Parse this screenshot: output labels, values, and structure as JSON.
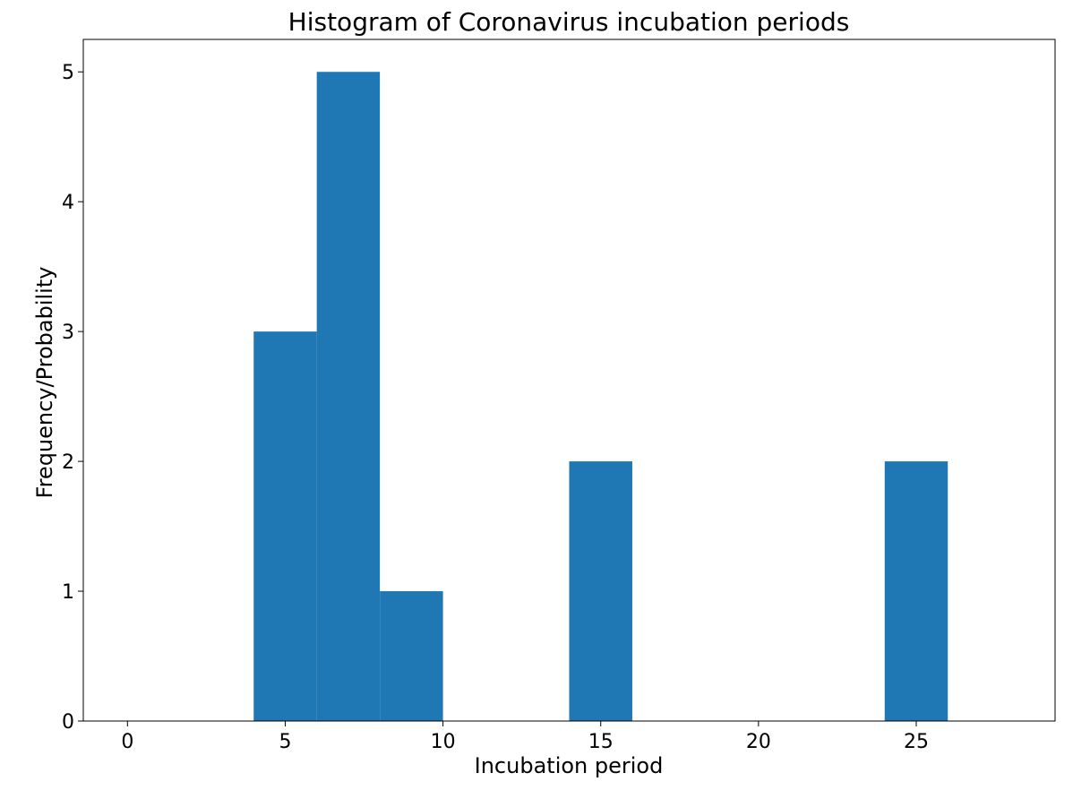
{
  "chart_data": {
    "type": "bar",
    "title": "Histogram of Coronavirus incubation periods",
    "xlabel": "Incubation period",
    "ylabel": "Frequency/Probability",
    "xlim": [
      -1.4,
      29.4
    ],
    "ylim": [
      0,
      5.25
    ],
    "xticks": [
      0,
      5,
      10,
      15,
      20,
      25
    ],
    "yticks": [
      0,
      1,
      2,
      3,
      4,
      5
    ],
    "bins": [
      {
        "start": 4,
        "end": 6,
        "value": 3
      },
      {
        "start": 6,
        "end": 8,
        "value": 5
      },
      {
        "start": 8,
        "end": 10,
        "value": 1
      },
      {
        "start": 14,
        "end": 16,
        "value": 2
      },
      {
        "start": 24,
        "end": 26,
        "value": 2
      }
    ],
    "bar_color": "#1f77b4",
    "grid": false,
    "legend": "none"
  }
}
